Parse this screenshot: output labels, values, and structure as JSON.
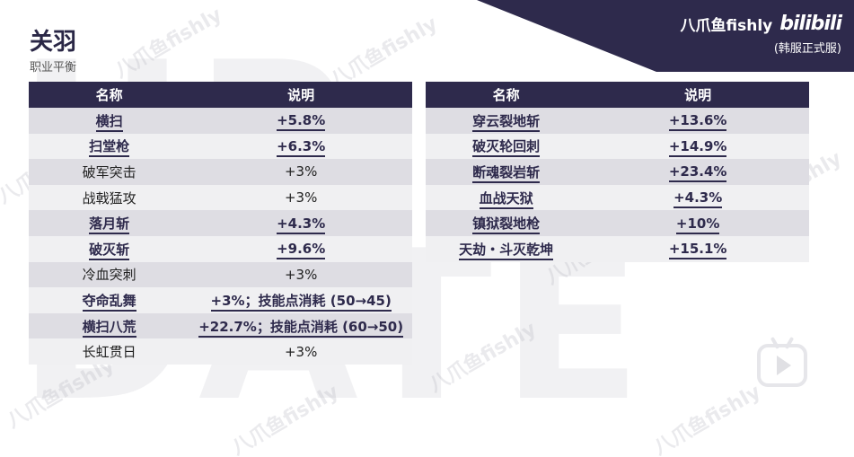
{
  "title": "关羽",
  "subtitle": "职业平衡",
  "brand": {
    "name": "八爪鱼fishly",
    "logo": "bilibili",
    "server": "(韩服正式服)",
    "color": "#2e2a4c"
  },
  "watermark_text": "八爪鱼fishly",
  "left_table": {
    "headers": [
      "名称",
      "说明"
    ],
    "rows": [
      {
        "name": "横扫",
        "desc": "+5.8%",
        "highlight": true
      },
      {
        "name": "扫堂枪",
        "desc": "+6.3%",
        "highlight": true
      },
      {
        "name": "破军突击",
        "desc": "+3%",
        "highlight": false
      },
      {
        "name": "战戟猛攻",
        "desc": "+3%",
        "highlight": false
      },
      {
        "name": "落月斩",
        "desc": "+4.3%",
        "highlight": true
      },
      {
        "name": "破灭斩",
        "desc": "+9.6%",
        "highlight": true
      },
      {
        "name": "冷血突刺",
        "desc": "+3%",
        "highlight": false
      },
      {
        "name": "夺命乱舞",
        "desc": "+3%；技能点消耗 (50→45)",
        "highlight": true
      },
      {
        "name": "横扫八荒",
        "desc": "+22.7%；技能点消耗 (60→50)",
        "highlight": true
      },
      {
        "name": "长虹贯日",
        "desc": "+3%",
        "highlight": false
      }
    ]
  },
  "right_table": {
    "headers": [
      "名称",
      "说明"
    ],
    "rows": [
      {
        "name": "穿云裂地斩",
        "desc": "+13.6%",
        "highlight": true
      },
      {
        "name": "破灭轮回刺",
        "desc": "+14.9%",
        "highlight": true
      },
      {
        "name": "断魂裂岩斩",
        "desc": "+23.4%",
        "highlight": true
      },
      {
        "name": "血战天狱",
        "desc": "+4.3%",
        "highlight": true
      },
      {
        "name": "镇狱裂地枪",
        "desc": "+10%",
        "highlight": true
      },
      {
        "name": "天劫・斗灭乾坤",
        "desc": "+15.1%",
        "highlight": true
      }
    ]
  }
}
